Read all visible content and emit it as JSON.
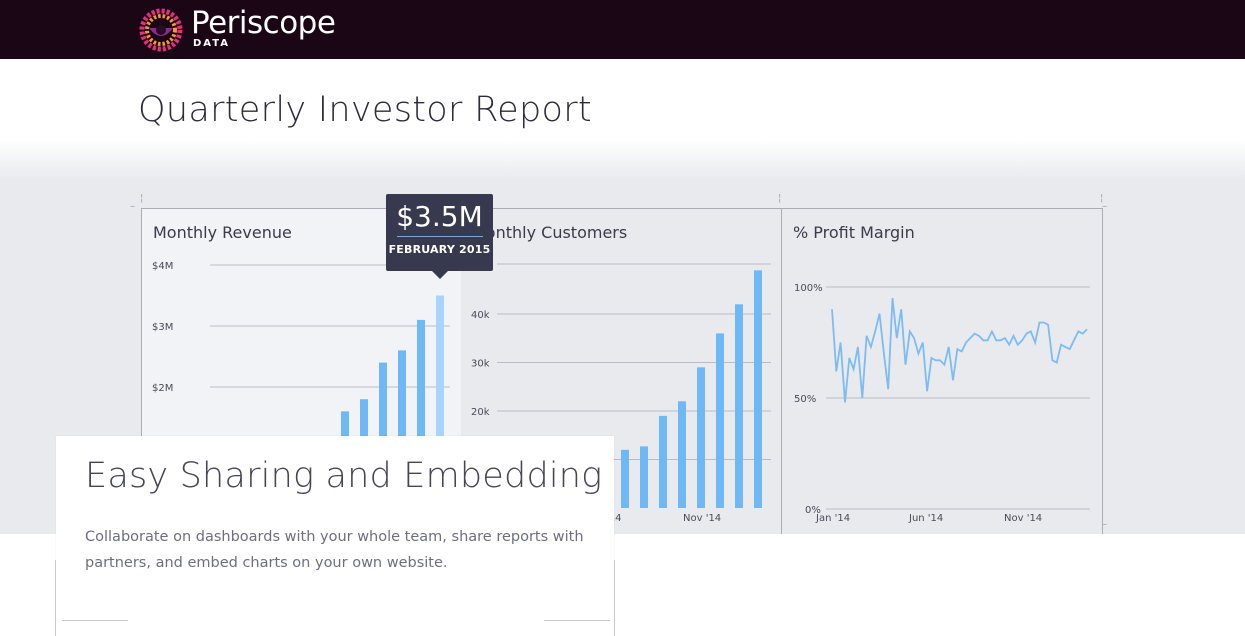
{
  "brand": {
    "name": "Periscope",
    "sub": "DATA"
  },
  "report": {
    "title": "Quarterly Investor Report"
  },
  "tooltip": {
    "amount": "$3.5M",
    "month": "FEBRUARY 2015"
  },
  "overlay": {
    "heading": "Easy Sharing and Embedding",
    "body": "Collaborate on dashboards with your whole team, share reports with partners, and embed charts on your own website."
  },
  "colors": {
    "bar": "#6eb8f5",
    "bar_highlight": "#a8d4fb",
    "line": "#7cbcf3",
    "topbar": "#1b0616"
  },
  "chart_data": [
    {
      "type": "bar",
      "title": "Monthly Revenue",
      "y_ticks": [
        "$4M",
        "$3M",
        "$2M"
      ],
      "ylim": [
        0,
        4
      ],
      "y_unit": "$M",
      "values": [
        1.6,
        1.8,
        2.4,
        2.6,
        3.1,
        3.5
      ],
      "highlight_index": 5
    },
    {
      "type": "bar",
      "title": "Monthly Customers",
      "y_ticks": [
        "40k",
        "30k",
        "20k"
      ],
      "x_ticks": [
        "Nov '14"
      ],
      "x_tick_partial": "'14",
      "ylim": [
        0,
        50000
      ],
      "values": [
        12000,
        12700,
        19000,
        22000,
        29000,
        36000,
        42000,
        49000
      ]
    },
    {
      "type": "line",
      "title": "% Profit Margin",
      "y_ticks": [
        "100%",
        "50%",
        "0%"
      ],
      "x_ticks": [
        "Jan '14",
        "Jun '14",
        "Nov '14"
      ],
      "ylim": [
        0,
        100
      ],
      "values": [
        90,
        62,
        75,
        48,
        68,
        63,
        73,
        50,
        78,
        73,
        80,
        88,
        70,
        54,
        95,
        77,
        90,
        65,
        80,
        77,
        70,
        75,
        53,
        68,
        67,
        67,
        65,
        73,
        58,
        72,
        71,
        75,
        77,
        79,
        78,
        76,
        76,
        80,
        76,
        76,
        77,
        74,
        78,
        74,
        76,
        79,
        80,
        75,
        84,
        84,
        83,
        67,
        66,
        74,
        73,
        72,
        76,
        80,
        79,
        81
      ]
    }
  ]
}
